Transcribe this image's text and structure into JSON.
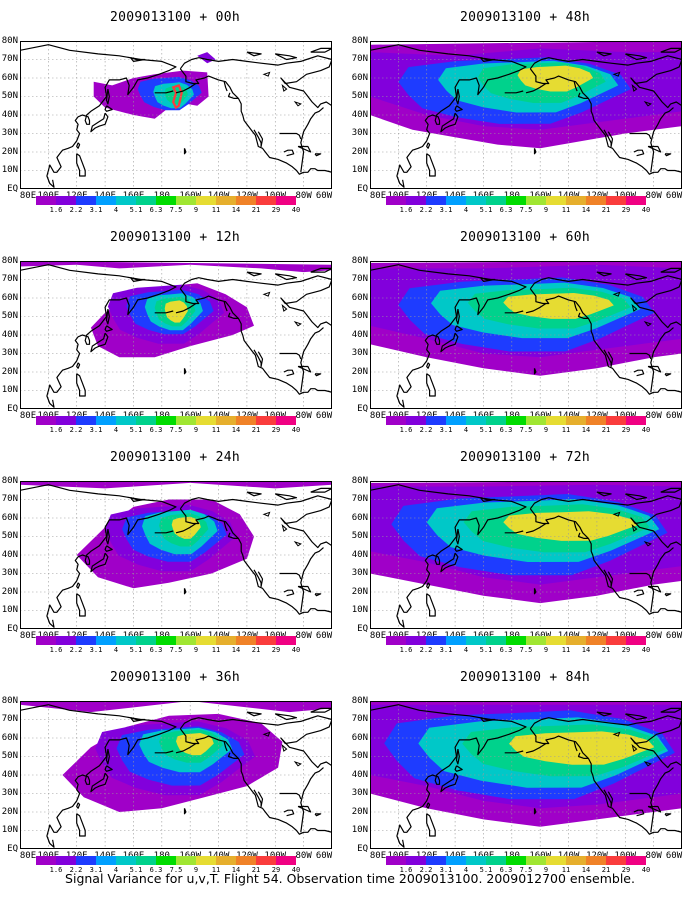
{
  "caption": "Signal Variance for u,v,T. Flight 54. Observation time 2009013100. 2009012700 ensemble.",
  "panels": [
    {
      "title": "2009013100 + 00h",
      "lead": "00h"
    },
    {
      "title": "2009013100 + 48h",
      "lead": "48h"
    },
    {
      "title": "2009013100 + 12h",
      "lead": "12h"
    },
    {
      "title": "2009013100 + 60h",
      "lead": "60h"
    },
    {
      "title": "2009013100 + 24h",
      "lead": "24h"
    },
    {
      "title": "2009013100 + 72h",
      "lead": "72h"
    },
    {
      "title": "2009013100 + 36h",
      "lead": "36h"
    },
    {
      "title": "2009013100 + 84h",
      "lead": "84h"
    }
  ],
  "map": {
    "lat_labels": [
      "80N",
      "70N",
      "60N",
      "50N",
      "40N",
      "30N",
      "20N",
      "10N",
      "EQ"
    ],
    "lon_labels": [
      "80E",
      "100E",
      "120E",
      "140E",
      "160E",
      "180",
      "160W",
      "140W",
      "120W",
      "100W",
      "80W",
      "60W"
    ]
  },
  "colorbar": {
    "labels": [
      "1.6",
      "2.2",
      "3.1",
      "4",
      "5.1",
      "6.3",
      "7.5",
      "9",
      "11",
      "14",
      "21",
      "29",
      "40"
    ],
    "colors": [
      "#a000c8",
      "#8200dc",
      "#1e3cff",
      "#00a0ff",
      "#00c8c8",
      "#00d28c",
      "#00dc00",
      "#a0e632",
      "#e6dc32",
      "#e6af2d",
      "#f08228",
      "#fa3c3c",
      "#f00082"
    ]
  }
}
